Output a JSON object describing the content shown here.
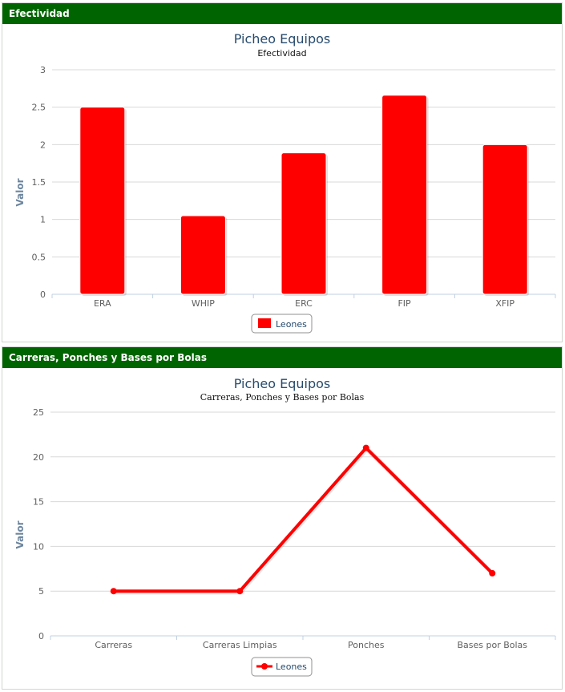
{
  "panels": [
    {
      "header": "Efectividad"
    },
    {
      "header": "Carreras, Ponches y Bases por Bolas"
    }
  ],
  "colors": {
    "header_bg": "#006400",
    "series": "#ff0000",
    "title": "#274b6d",
    "axis_label": "#6d869f"
  },
  "chart_data": [
    {
      "type": "bar",
      "title": "Picheo Equipos",
      "subtitle": "Efectividad",
      "ylabel": "Valor",
      "xlabel": "",
      "categories": [
        "ERA",
        "WHIP",
        "ERC",
        "FIP",
        "XFIP"
      ],
      "series": [
        {
          "name": "Leones",
          "values": [
            2.5,
            1.05,
            1.89,
            2.66,
            2.0
          ]
        }
      ],
      "ylim": [
        0,
        3
      ],
      "yticks": [
        "0",
        "0.5",
        "1",
        "1.5",
        "2",
        "2.5",
        "3"
      ],
      "grid": true,
      "legend": "bottom-center"
    },
    {
      "type": "line",
      "title": "Picheo Equipos",
      "subtitle": "Carreras, Ponches y Bases por Bolas",
      "ylabel": "Valor",
      "xlabel": "",
      "categories": [
        "Carreras",
        "Carreras Limpias",
        "Ponches",
        "Bases por Bolas"
      ],
      "series": [
        {
          "name": "Leones",
          "values": [
            5,
            5,
            21,
            7
          ]
        }
      ],
      "ylim": [
        0,
        25
      ],
      "yticks": [
        "0",
        "5",
        "10",
        "15",
        "20",
        "25"
      ],
      "grid": true,
      "legend": "bottom-center"
    }
  ]
}
